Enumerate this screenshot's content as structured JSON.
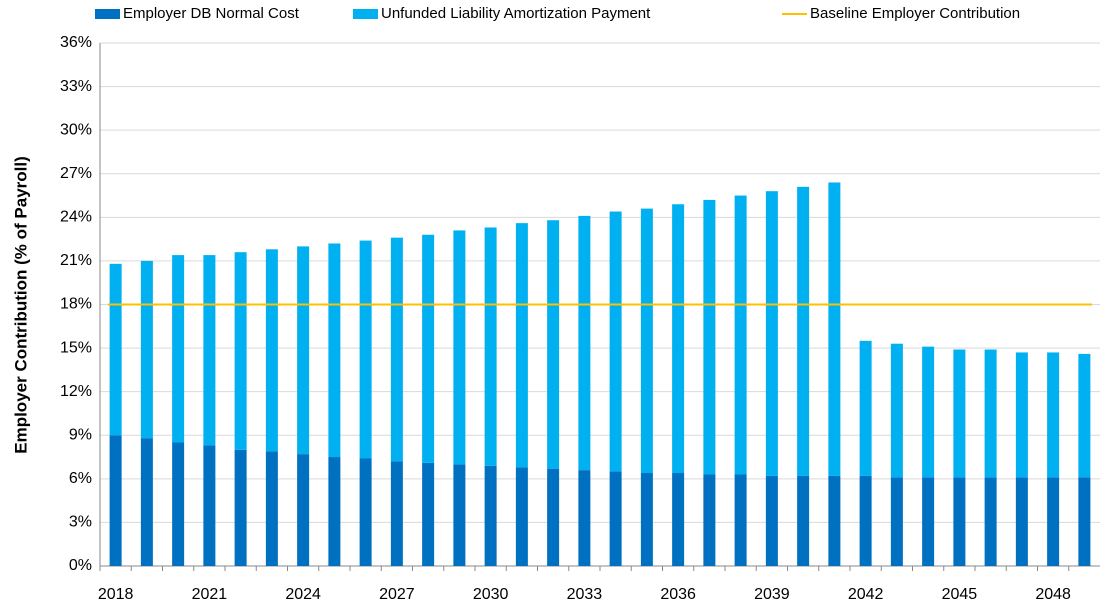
{
  "chart_data": {
    "type": "bar",
    "stacked": true,
    "y_label": "Employer Contribution (% of Payroll)",
    "categories": [
      "2018",
      null,
      null,
      "2021",
      null,
      null,
      "2024",
      null,
      null,
      "2027",
      null,
      null,
      "2030",
      null,
      null,
      "2033",
      null,
      null,
      "2036",
      null,
      null,
      "2039",
      null,
      null,
      "2042",
      null,
      null,
      "2045",
      null,
      null,
      "2048",
      null
    ],
    "series": [
      {
        "name": "Employer DB Normal Cost",
        "color": "#0070c0",
        "values": [
          9.0,
          8.8,
          8.5,
          8.3,
          8.0,
          7.9,
          7.7,
          7.5,
          7.4,
          7.2,
          7.1,
          7.0,
          6.9,
          6.8,
          6.7,
          6.6,
          6.5,
          6.4,
          6.4,
          6.3,
          6.3,
          6.2,
          6.2,
          6.2,
          6.2,
          6.1,
          6.1,
          6.1,
          6.1,
          6.1,
          6.1,
          6.1
        ]
      },
      {
        "name": "Unfunded Liability Amortization Payment",
        "color": "#00b0f0",
        "values": [
          11.8,
          12.2,
          12.9,
          13.1,
          13.6,
          13.9,
          14.3,
          14.7,
          15.0,
          15.4,
          15.7,
          16.1,
          16.4,
          16.8,
          17.1,
          17.5,
          17.9,
          18.2,
          18.5,
          18.9,
          19.2,
          19.6,
          19.9,
          20.2,
          9.3,
          9.2,
          9.0,
          8.8,
          8.8,
          8.6,
          8.6,
          8.5
        ]
      },
      {
        "name": "Baseline Employer Contribution",
        "color": "#ffc000",
        "type": "line",
        "values": [
          18,
          18,
          18,
          18,
          18,
          18,
          18,
          18,
          18,
          18,
          18,
          18,
          18,
          18,
          18,
          18,
          18,
          18,
          18,
          18,
          18,
          18,
          18,
          18,
          18,
          18,
          18,
          18,
          18,
          18,
          18,
          18
        ]
      }
    ],
    "ylim": [
      0,
      36
    ],
    "yticks": [
      {
        "value": 0,
        "label": "0%"
      },
      {
        "value": 3,
        "label": "3%"
      },
      {
        "value": 6,
        "label": "6%"
      },
      {
        "value": 9,
        "label": "9%"
      },
      {
        "value": 12,
        "label": "12%"
      },
      {
        "value": 15,
        "label": "15%"
      },
      {
        "value": 18,
        "label": "18%"
      },
      {
        "value": 21,
        "label": "21%"
      },
      {
        "value": 24,
        "label": "24%"
      },
      {
        "value": 27,
        "label": "27%"
      },
      {
        "value": 30,
        "label": "30%"
      },
      {
        "value": 33,
        "label": "33%"
      },
      {
        "value": 36,
        "label": "36%"
      }
    ],
    "grid": true,
    "legend": "top"
  }
}
